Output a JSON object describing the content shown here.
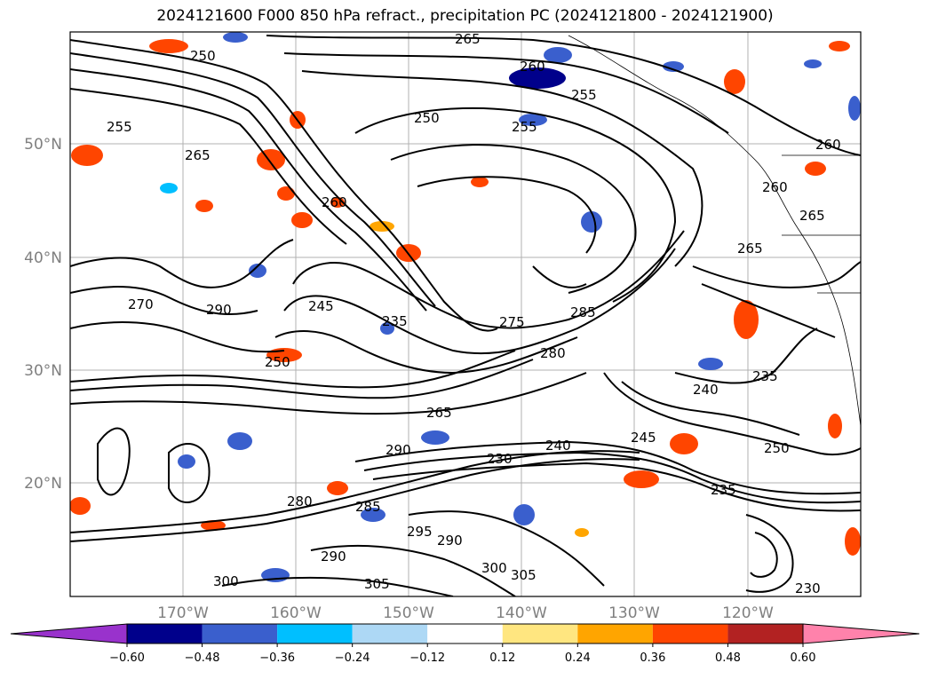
{
  "title": "2024121600 F000 850 hPa refract., precipitation PC (2024121800 - 2024121900)",
  "lat_labels": [
    "50°N",
    "40°N",
    "30°N",
    "20°N"
  ],
  "lon_labels": [
    "170°W",
    "160°W",
    "150°W",
    "140°W",
    "130°W",
    "120°W"
  ],
  "contour_labels": [
    "265",
    "260",
    "255",
    "250",
    "250",
    "255",
    "265",
    "260",
    "270",
    "290",
    "245",
    "235",
    "275",
    "285",
    "280",
    "240",
    "235",
    "230",
    "265",
    "290",
    "240",
    "245",
    "250",
    "235",
    "295",
    "290",
    "300",
    "305",
    "280",
    "285",
    "290",
    "300",
    "305",
    "260",
    "260",
    "265",
    "265",
    "250",
    "255",
    "230"
  ],
  "colorbar": {
    "ticks": [
      "−0.60",
      "−0.48",
      "−0.36",
      "−0.24",
      "−0.12",
      "0.12",
      "0.24",
      "0.36",
      "0.48",
      "0.60"
    ],
    "colors": [
      "#9932cc",
      "#00008b",
      "#3a5fcd",
      "#00bfff",
      "#add8f5",
      "#ffffff",
      "#ffe680",
      "#ffa500",
      "#ff4500",
      "#b22222",
      "#ff82ab"
    ]
  }
}
